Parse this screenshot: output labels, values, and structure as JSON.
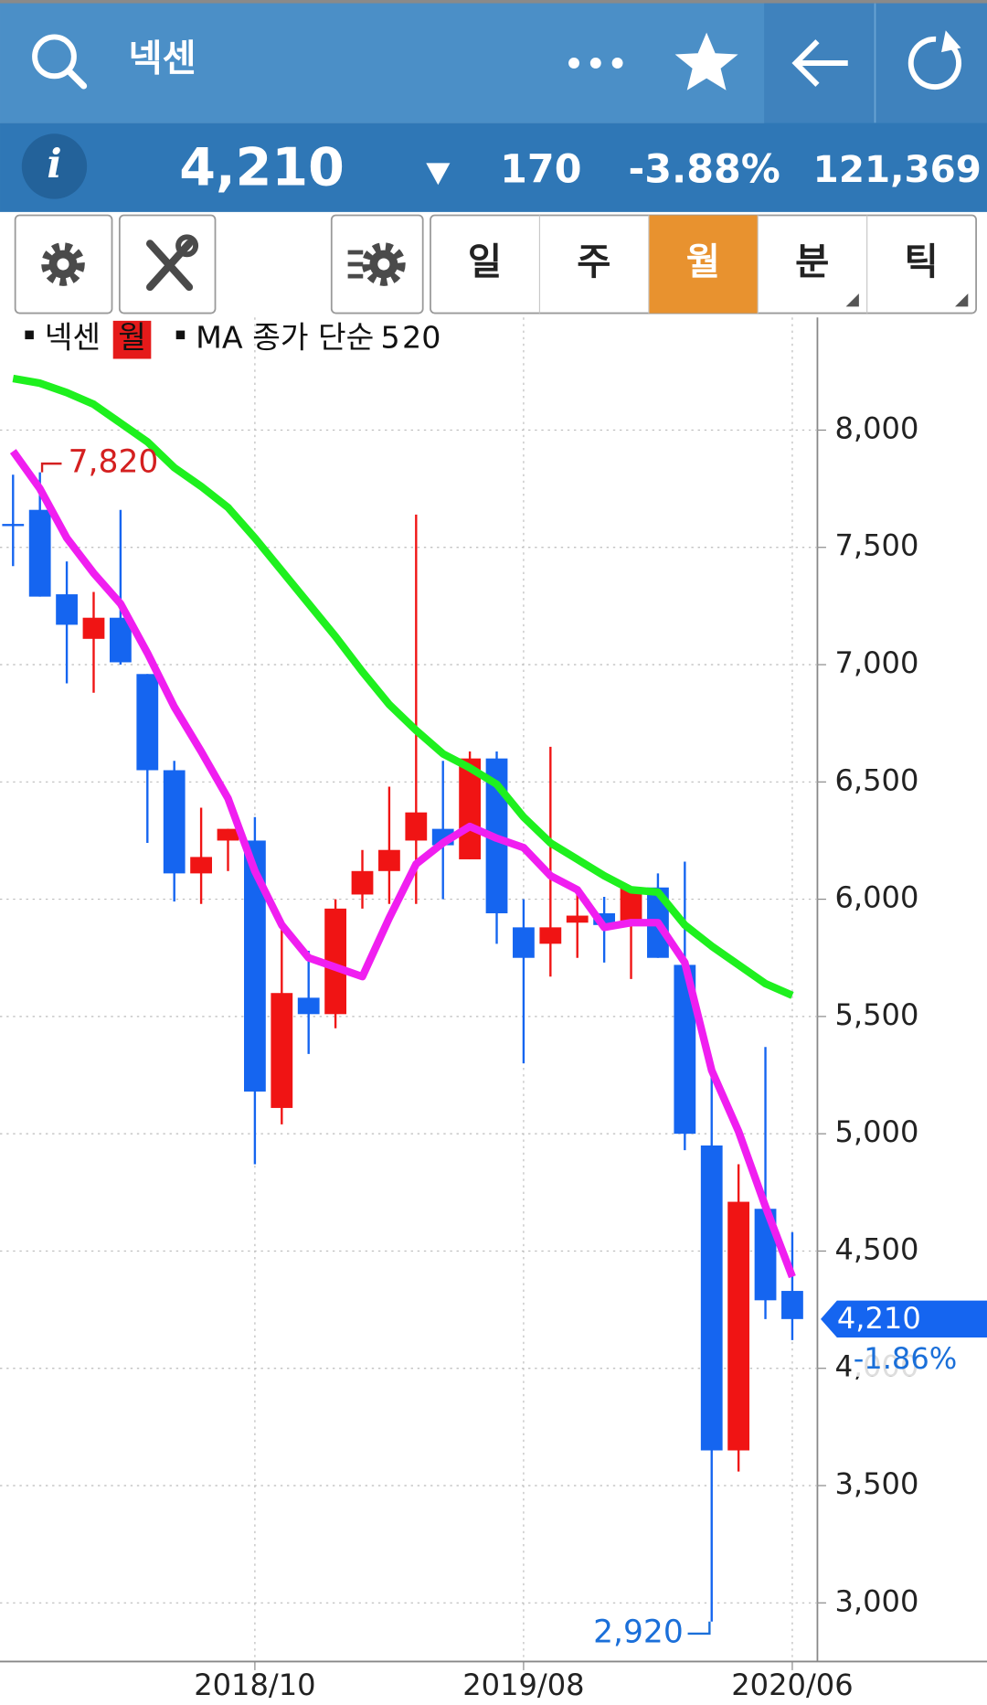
{
  "header": {
    "title": "넥센"
  },
  "quote": {
    "info_label": "i",
    "price": "4,210",
    "change": "170",
    "change_pct": "-3.88%",
    "volume": "121,369"
  },
  "tabs": {
    "items": [
      "일",
      "주",
      "월",
      "분",
      "틱"
    ],
    "active": "월",
    "color": "#e8922f"
  },
  "chart_data": {
    "type": "candlestick",
    "series_name": "넥센",
    "period": "월",
    "ma_label": "MA 종가 단순",
    "categories": [
      null,
      null,
      null,
      null,
      null,
      null,
      null,
      null,
      null,
      "2018/10",
      null,
      null,
      null,
      null,
      null,
      null,
      null,
      null,
      null,
      "2019/08",
      null,
      null,
      null,
      null,
      null,
      null,
      null,
      null,
      null,
      "2020/06"
    ],
    "open": [
      7600,
      7660,
      7300,
      7110,
      7200,
      6960,
      6550,
      6110,
      6250,
      6250,
      5110,
      5580,
      5510,
      6020,
      6120,
      6250,
      6300,
      6170,
      6600,
      5880,
      5810,
      5900,
      5940,
      5890,
      6050,
      5720,
      4950,
      3650,
      4680,
      4330
    ],
    "high": [
      7810,
      7820,
      7440,
      7310,
      7660,
      6960,
      6590,
      6390,
      6300,
      6350,
      5870,
      5780,
      6000,
      6210,
      6480,
      7640,
      6590,
      6630,
      6630,
      6000,
      6650,
      6030,
      6010,
      6050,
      6110,
      6160,
      5270,
      4870,
      5370,
      4580
    ],
    "low": [
      7420,
      7290,
      6920,
      6880,
      7000,
      6240,
      5990,
      5980,
      6120,
      4870,
      5040,
      5340,
      5450,
      5960,
      5980,
      5980,
      6000,
      6170,
      5810,
      5300,
      5670,
      5750,
      5730,
      5660,
      5750,
      4930,
      2920,
      3560,
      4210,
      4120
    ],
    "close": [
      7600,
      7290,
      7170,
      7200,
      7010,
      6550,
      6110,
      6180,
      6300,
      5180,
      5600,
      5510,
      5960,
      6120,
      6210,
      6370,
      6230,
      6600,
      5940,
      5750,
      5880,
      5930,
      5890,
      6050,
      5750,
      5000,
      3650,
      4710,
      4290,
      4210
    ],
    "up_color": "#f01414",
    "down_color": "#1565f0",
    "ma": [
      {
        "name": "5",
        "color": "#f01ef0",
        "values": [
          7910,
          7750,
          7540,
          7390,
          7260,
          7050,
          6820,
          6630,
          6430,
          6120,
          5890,
          5750,
          5710,
          5670,
          5920,
          6150,
          6240,
          6310,
          6260,
          6220,
          6100,
          6040,
          5880,
          5900,
          5900,
          5730,
          5270,
          5010,
          4690,
          4390
        ]
      },
      {
        "name": "20",
        "color": "#1ef01e",
        "values": [
          8220,
          8200,
          8160,
          8110,
          8030,
          7950,
          7840,
          7760,
          7670,
          7540,
          7400,
          7260,
          7120,
          6970,
          6830,
          6720,
          6620,
          6560,
          6490,
          6350,
          6240,
          6170,
          6100,
          6040,
          6030,
          5890,
          5800,
          5720,
          5640,
          5590
        ]
      }
    ],
    "ylim": [
      2750,
      8480
    ],
    "yticks": [
      {
        "value": 3000,
        "label": "3,000"
      },
      {
        "value": 3500,
        "label": "3,500"
      },
      {
        "value": 4000,
        "label": "4,000"
      },
      {
        "value": 4500,
        "label": "4,500"
      },
      {
        "value": 5000,
        "label": "5,000"
      },
      {
        "value": 5500,
        "label": "5,500"
      },
      {
        "value": 6000,
        "label": "6,000"
      },
      {
        "value": 6500,
        "label": "6,500"
      },
      {
        "value": 7000,
        "label": "7,000"
      },
      {
        "value": 7500,
        "label": "7,500"
      },
      {
        "value": 8000,
        "label": "8,000"
      }
    ],
    "grid": true,
    "annotations": [
      {
        "kind": "high",
        "value": 7820,
        "label": "7,820",
        "color": "#d42020"
      },
      {
        "kind": "low",
        "value": 2920,
        "label": "2,920",
        "color": "#1a6fd9"
      }
    ],
    "last": {
      "value": 4210,
      "label": "4,210",
      "change": "-1.86%",
      "color": "#1565f0"
    }
  }
}
